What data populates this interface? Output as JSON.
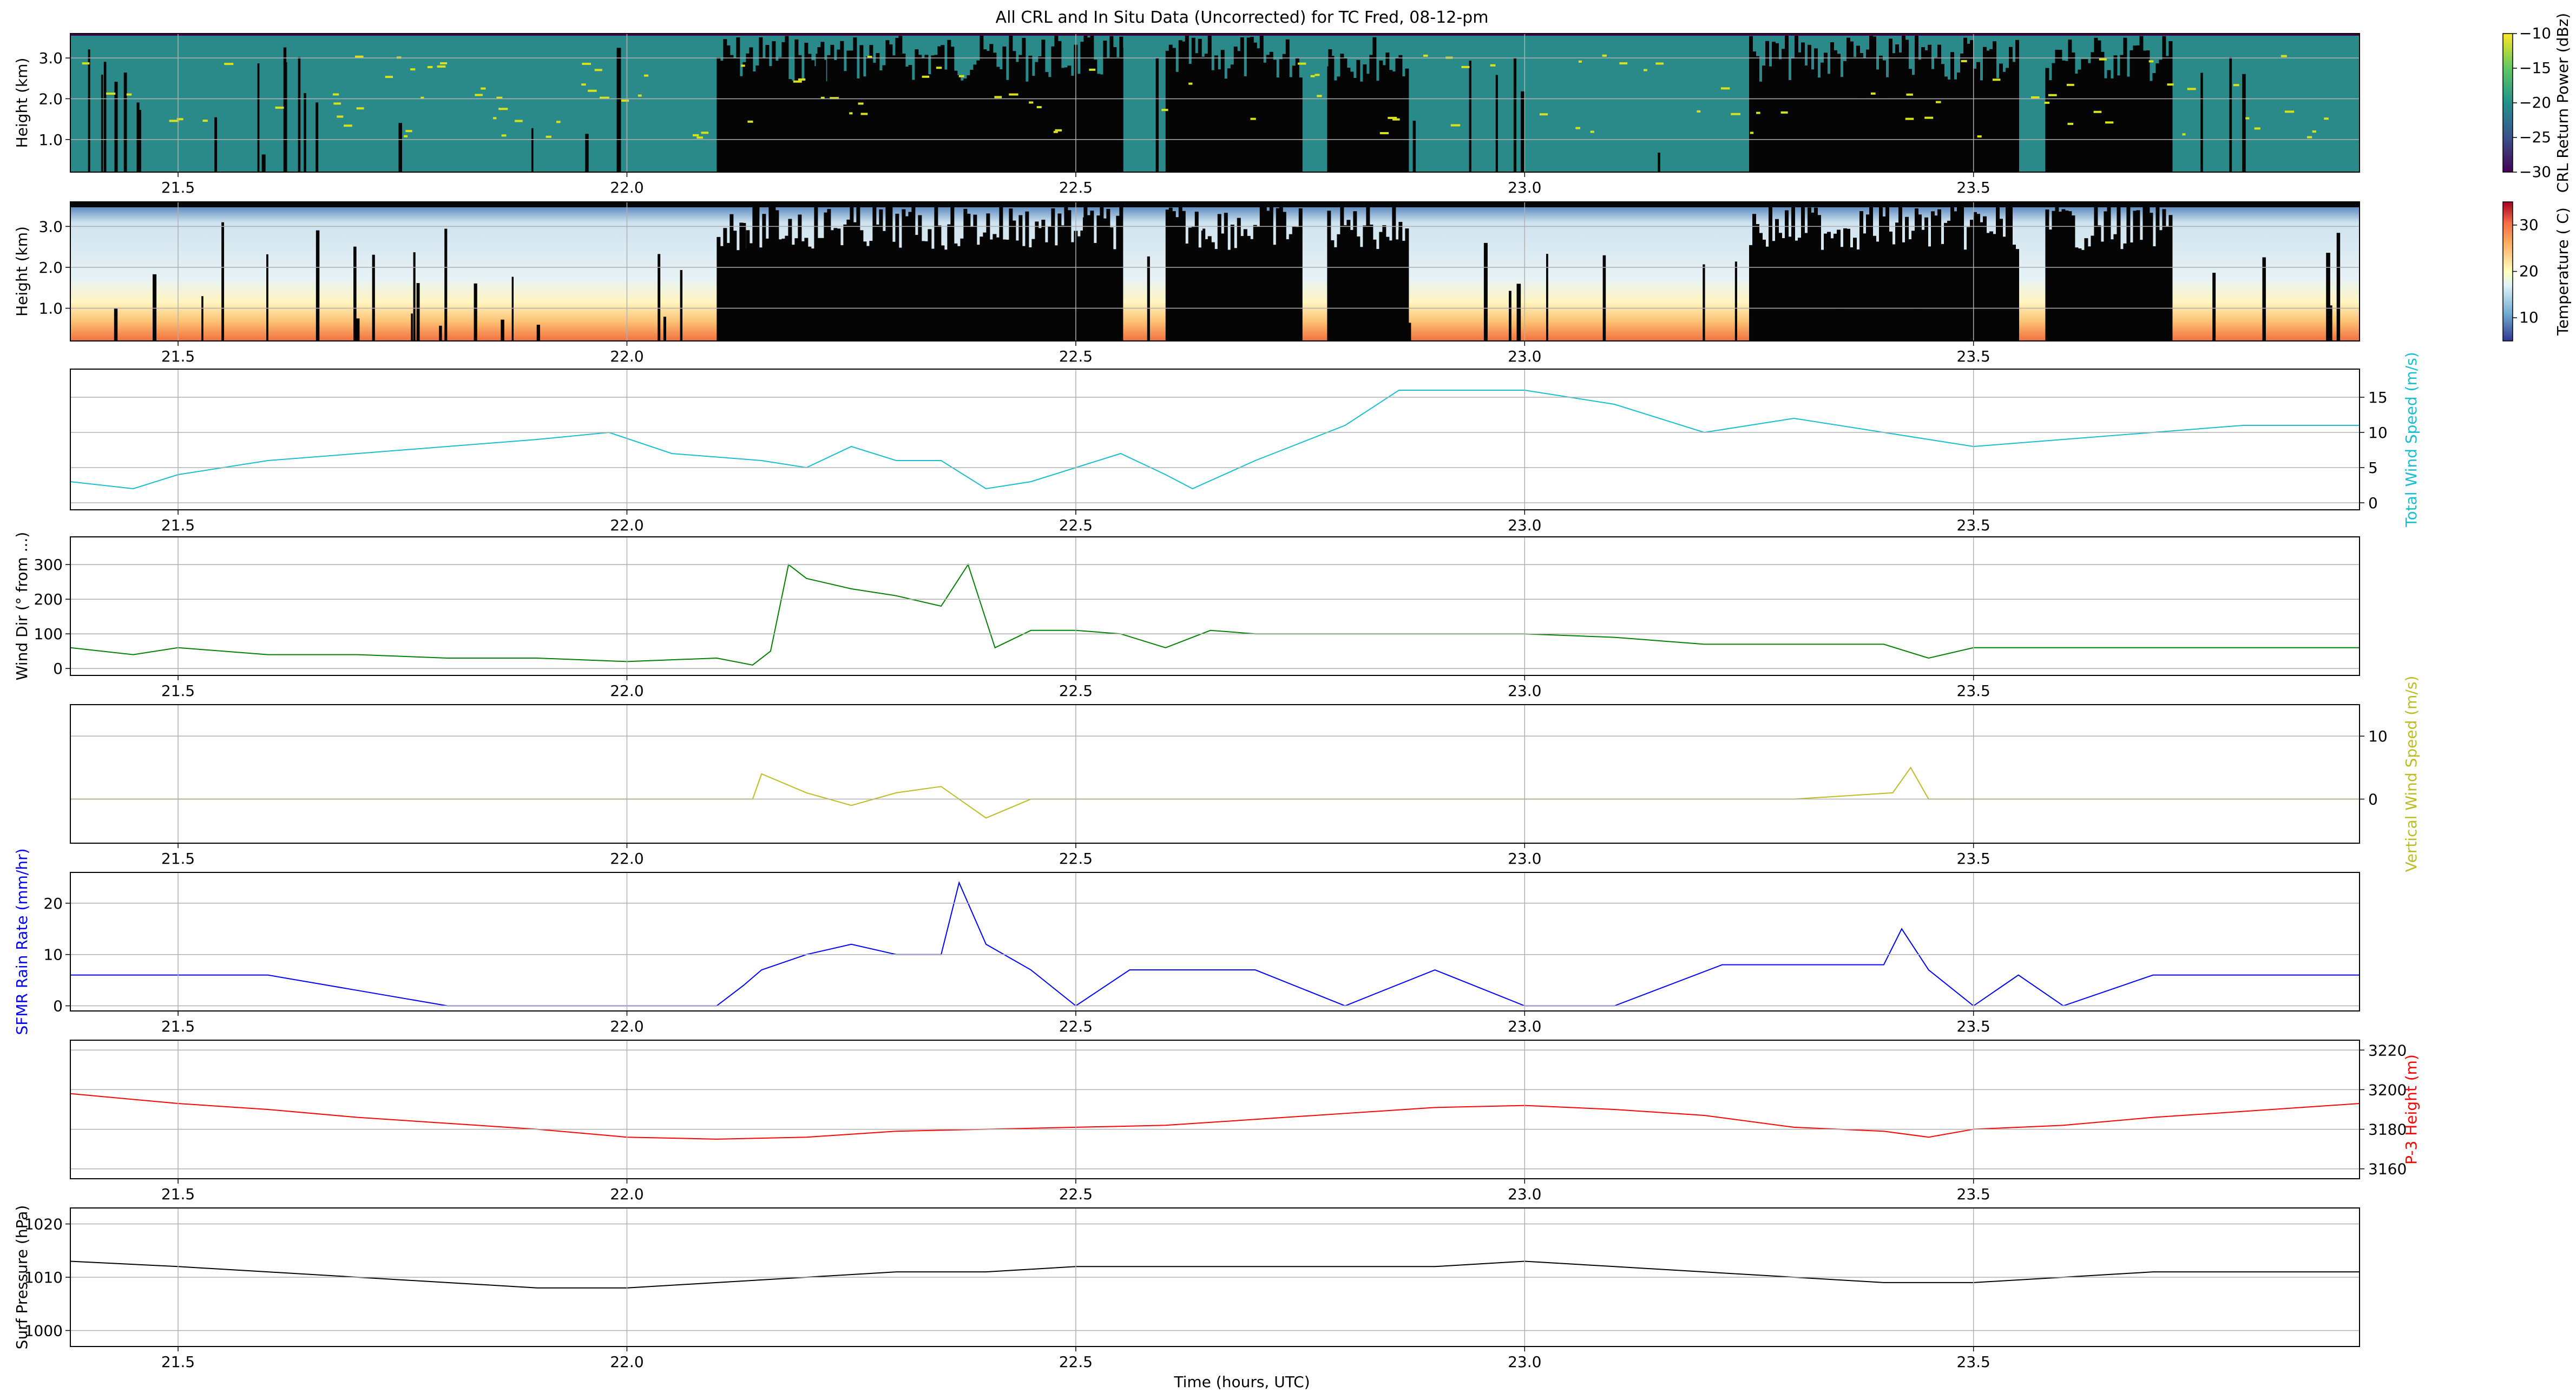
{
  "figure": {
    "title": "All CRL and In Situ Data (Uncorrected) for TC Fred, 08-12-pm",
    "xlabel": "Time (hours, UTC)"
  },
  "chart_data": [
    {
      "type": "heatmap",
      "id": "crl_power",
      "ylabel": "Height (km)",
      "xlim": [
        21.38,
        23.93
      ],
      "ylim": [
        0.2,
        3.6
      ],
      "xticks": [
        "21.5",
        "22.0",
        "22.5",
        "23.0",
        "23.5"
      ],
      "yticks": [
        "1.0",
        "2.0",
        "3.0"
      ],
      "grid": true,
      "colorbar": {
        "label": "CRL Return Power (dBz)",
        "range": [
          -30,
          -10
        ],
        "ticks": [
          "−10",
          "−15",
          "−20",
          "−25",
          "−30"
        ],
        "colormap": "viridis"
      }
    },
    {
      "type": "heatmap",
      "id": "crl_temperature",
      "ylabel": "Height (km)",
      "xlim": [
        21.38,
        23.93
      ],
      "ylim": [
        0.2,
        3.6
      ],
      "xticks": [
        "21.5",
        "22.0",
        "22.5",
        "23.0",
        "23.5"
      ],
      "yticks": [
        "1.0",
        "2.0",
        "3.0"
      ],
      "grid": true,
      "colorbar": {
        "label": "Temperature ( C)",
        "range": [
          5,
          35
        ],
        "ticks": [
          "30",
          "20",
          "10"
        ],
        "colormap": "RdYlBu_r"
      }
    },
    {
      "type": "line",
      "id": "total_wind_speed",
      "ylabel": "Total Wind Speed (m/s)",
      "ylabel_side": "right",
      "color": "#17becf",
      "xlim": [
        21.38,
        23.93
      ],
      "ylim": [
        -1,
        19
      ],
      "yticks": [
        "0",
        "5",
        "10",
        "15"
      ],
      "xticks": [
        "21.5",
        "22.0",
        "22.5",
        "23.0",
        "23.5"
      ],
      "x": [
        21.38,
        21.45,
        21.5,
        21.6,
        21.7,
        21.8,
        21.9,
        21.98,
        22.05,
        22.15,
        22.2,
        22.25,
        22.3,
        22.35,
        22.4,
        22.45,
        22.5,
        22.55,
        22.6,
        22.63,
        22.7,
        22.8,
        22.86,
        22.9,
        23.0,
        23.1,
        23.2,
        23.3,
        23.4,
        23.45,
        23.5,
        23.6,
        23.7,
        23.8,
        23.93
      ],
      "y": [
        3,
        2,
        4,
        6,
        7,
        8,
        9,
        10,
        7,
        6,
        5,
        8,
        6,
        6,
        2,
        3,
        5,
        7,
        4,
        2,
        6,
        11,
        16,
        16,
        16,
        14,
        10,
        12,
        10,
        9,
        8,
        9,
        10,
        11,
        11
      ]
    },
    {
      "type": "line",
      "id": "wind_direction",
      "ylabel": "Wind Dir (° from ...)",
      "color": "#008000",
      "xlim": [
        21.38,
        23.93
      ],
      "ylim": [
        -20,
        380
      ],
      "yticks": [
        "0",
        "100",
        "200",
        "300"
      ],
      "xticks": [
        "21.5",
        "22.0",
        "22.5",
        "23.0",
        "23.5"
      ],
      "x": [
        21.38,
        21.45,
        21.5,
        21.6,
        21.7,
        21.8,
        21.9,
        22.0,
        22.1,
        22.14,
        22.16,
        22.18,
        22.2,
        22.25,
        22.3,
        22.35,
        22.38,
        22.41,
        22.45,
        22.5,
        22.55,
        22.6,
        22.65,
        22.7,
        22.8,
        22.9,
        23.0,
        23.1,
        23.2,
        23.3,
        23.4,
        23.45,
        23.5,
        23.6,
        23.7,
        23.8,
        23.93
      ],
      "y": [
        60,
        40,
        60,
        40,
        40,
        30,
        30,
        20,
        30,
        10,
        50,
        300,
        260,
        230,
        210,
        180,
        300,
        60,
        110,
        110,
        100,
        60,
        110,
        100,
        100,
        100,
        100,
        90,
        70,
        70,
        70,
        30,
        60,
        60,
        60,
        60,
        60
      ]
    },
    {
      "type": "line",
      "id": "vertical_wind_speed",
      "ylabel": "Vertical Wind Speed (m/s)",
      "ylabel_side": "right",
      "color": "#bcbd22",
      "xlim": [
        21.38,
        23.93
      ],
      "ylim": [
        -7,
        15
      ],
      "yticks": [
        "0",
        "10"
      ],
      "xticks": [
        "21.5",
        "22.0",
        "22.5",
        "23.0",
        "23.5"
      ],
      "x": [
        21.38,
        21.6,
        21.8,
        22.0,
        22.1,
        22.14,
        22.15,
        22.2,
        22.25,
        22.3,
        22.35,
        22.38,
        22.4,
        22.45,
        22.5,
        22.6,
        22.7,
        22.9,
        23.1,
        23.3,
        23.41,
        23.43,
        23.45,
        23.6,
        23.8,
        23.93
      ],
      "y": [
        0,
        0,
        0,
        0,
        0,
        0,
        4,
        1,
        -1,
        1,
        2,
        -1,
        -3,
        0,
        0,
        0,
        0,
        0,
        0,
        0,
        1,
        5,
        0,
        0,
        0,
        0
      ]
    },
    {
      "type": "line",
      "id": "sfmr_rain_rate",
      "ylabel": "SFMR Rain Rate (mm/hr)",
      "color": "#0000ff",
      "xlim": [
        21.38,
        23.93
      ],
      "ylim": [
        -1,
        26
      ],
      "yticks": [
        "0",
        "10",
        "20"
      ],
      "xticks": [
        "21.5",
        "22.0",
        "22.5",
        "23.0",
        "23.5"
      ],
      "x": [
        21.38,
        21.5,
        21.6,
        21.7,
        21.8,
        21.9,
        22.0,
        22.1,
        22.13,
        22.15,
        22.2,
        22.25,
        22.3,
        22.35,
        22.37,
        22.4,
        22.45,
        22.5,
        22.56,
        22.6,
        22.7,
        22.8,
        22.9,
        23.0,
        23.1,
        23.22,
        23.3,
        23.4,
        23.42,
        23.45,
        23.5,
        23.55,
        23.6,
        23.7,
        23.8,
        23.93
      ],
      "y": [
        6,
        6,
        6,
        3,
        0,
        0,
        0,
        0,
        4,
        7,
        10,
        12,
        10,
        10,
        24,
        12,
        7,
        0,
        7,
        7,
        7,
        0,
        7,
        0,
        0,
        8,
        8,
        8,
        15,
        7,
        0,
        6,
        0,
        6,
        6,
        6
      ]
    },
    {
      "type": "line",
      "id": "p3_height",
      "ylabel": "P-3 Height (m)",
      "ylabel_side": "right",
      "color": "#ff0000",
      "xlim": [
        21.38,
        23.93
      ],
      "ylim": [
        3155,
        3225
      ],
      "yticks": [
        "3160",
        "3180",
        "3200",
        "3220"
      ],
      "xticks": [
        "21.5",
        "22.0",
        "22.5",
        "23.0",
        "23.5"
      ],
      "x": [
        21.38,
        21.5,
        21.6,
        21.7,
        21.8,
        21.9,
        22.0,
        22.1,
        22.2,
        22.3,
        22.4,
        22.5,
        22.6,
        22.7,
        22.8,
        22.9,
        23.0,
        23.1,
        23.2,
        23.3,
        23.4,
        23.45,
        23.5,
        23.6,
        23.7,
        23.8,
        23.93
      ],
      "y": [
        3198,
        3193,
        3190,
        3186,
        3183,
        3180,
        3176,
        3175,
        3176,
        3179,
        3180,
        3181,
        3182,
        3185,
        3188,
        3191,
        3192,
        3190,
        3187,
        3181,
        3179,
        3176,
        3180,
        3182,
        3186,
        3189,
        3193
      ]
    },
    {
      "type": "line",
      "id": "surface_pressure",
      "ylabel": "Surf Pressure (hPa)",
      "color": "#000000",
      "xlim": [
        21.38,
        23.93
      ],
      "ylim": [
        997,
        1023
      ],
      "yticks": [
        "1000",
        "1010",
        "1020"
      ],
      "xticks": [
        "21.5",
        "22.0",
        "22.5",
        "23.0",
        "23.5"
      ],
      "x": [
        21.38,
        21.5,
        21.6,
        21.7,
        21.8,
        21.9,
        22.0,
        22.1,
        22.2,
        22.3,
        22.4,
        22.5,
        22.6,
        22.7,
        22.8,
        22.9,
        23.0,
        23.1,
        23.2,
        23.3,
        23.4,
        23.5,
        23.6,
        23.7,
        23.8,
        23.93
      ],
      "y": [
        1013,
        1012,
        1011,
        1010,
        1009,
        1008,
        1008,
        1009,
        1010,
        1011,
        1011,
        1012,
        1012,
        1012,
        1012,
        1012,
        1013,
        1012,
        1011,
        1010,
        1009,
        1009,
        1010,
        1011,
        1011,
        1011
      ]
    }
  ]
}
